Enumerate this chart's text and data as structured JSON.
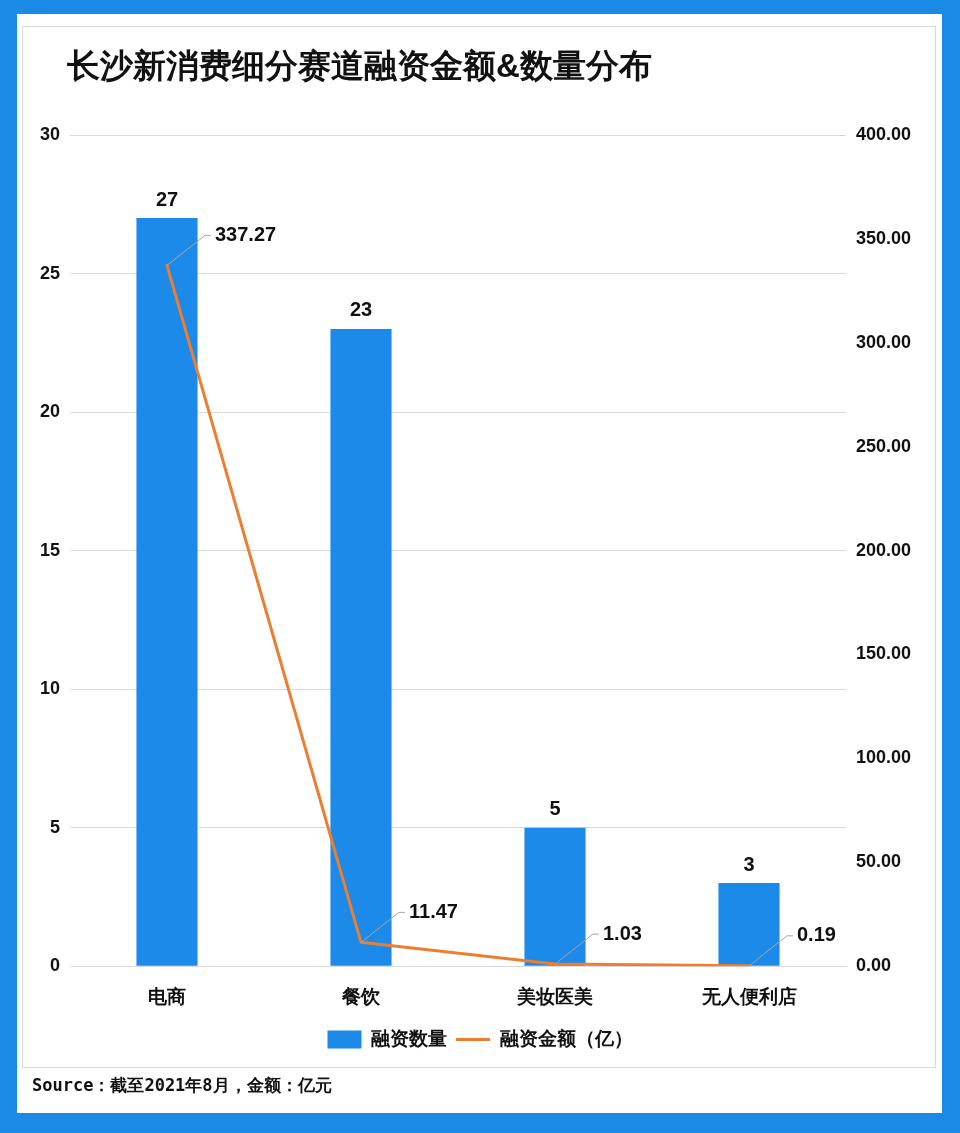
{
  "chart_data": {
    "type": "bar",
    "title": "长沙新消费细分赛道融资金额&数量分布",
    "categories": [
      "电商",
      "餐饮",
      "美妆医美",
      "无人便利店"
    ],
    "series": [
      {
        "name": "融资数量",
        "color": "#1b8ae8",
        "values": [
          27,
          23,
          5,
          3
        ]
      },
      {
        "name": "融资金额（亿）",
        "type": "line",
        "axis": "y2",
        "color": "#ed7d31",
        "values": [
          337.27,
          11.47,
          1.03,
          0.19
        ]
      }
    ],
    "ylim": [
      0,
      30
    ],
    "yticks": [
      0,
      5,
      10,
      15,
      20,
      25,
      30
    ],
    "y2lim": [
      0,
      400
    ],
    "y2ticks": [
      {
        "value": 0,
        "label": "0.00"
      },
      {
        "value": 50,
        "label": "50.00"
      },
      {
        "value": 100,
        "label": "100.00"
      },
      {
        "value": 150,
        "label": "150.00"
      },
      {
        "value": 200,
        "label": "200.00"
      },
      {
        "value": 250,
        "label": "250.00"
      },
      {
        "value": 300,
        "label": "300.00"
      },
      {
        "value": 350,
        "label": "350.00"
      },
      {
        "value": 400,
        "label": "400.00"
      }
    ],
    "grid": "y",
    "legend": "bottom",
    "data_labels": true,
    "marker": "none",
    "line_style": "solid",
    "annotations": [
      "Source：截至2021年8月，金额：亿元"
    ]
  }
}
